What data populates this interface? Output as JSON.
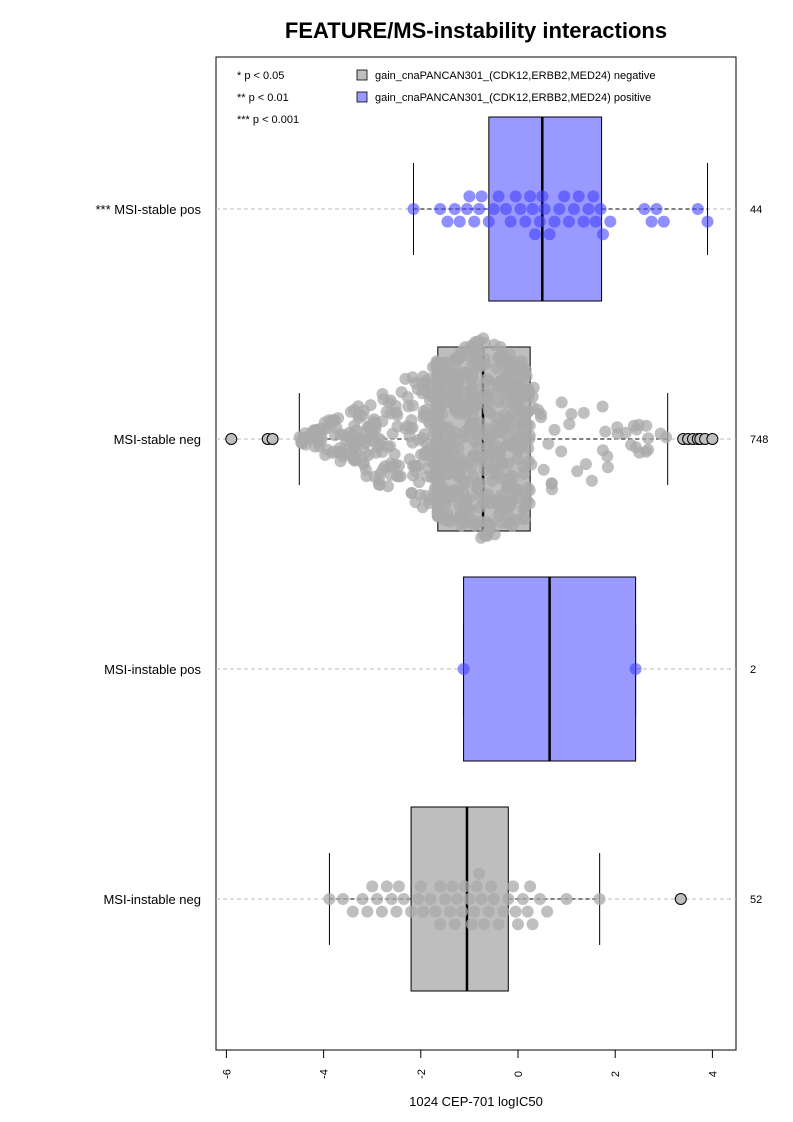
{
  "chart_data": {
    "type": "boxplot",
    "orientation": "horizontal",
    "title": "FEATURE/MS-instability interactions",
    "xlabel": "1024 CEP-701 logIC50",
    "xlim": [
      -6.3,
      4.5
    ],
    "x_ticks": [
      -6,
      -4,
      -2,
      0,
      2,
      4
    ],
    "x_tick_labels": [
      "-6",
      "-4",
      "-2",
      "0",
      "2",
      "4"
    ],
    "significance_legend": [
      "* p < 0.05",
      "** p < 0.01",
      "*** p < 0.001"
    ],
    "legend": [
      {
        "label": "gain_cnaPANCAN301_(CDK12,ERBB2,MED24) negative",
        "color": "#bebebe"
      },
      {
        "label": "gain_cnaPANCAN301_(CDK12,ERBB2,MED24) positive",
        "color": "#9999ff"
      }
    ],
    "colors": {
      "negative_box": "#bebebe",
      "positive_box": "#9999ff",
      "negative_point": "#aaaaaa",
      "positive_point": "#4444ff",
      "grid": "#bbbbbb"
    },
    "groups": [
      {
        "label": "*** MSI-stable pos",
        "n_label": "44",
        "kind": "pos",
        "whisker_low": -2.15,
        "q1": -0.6,
        "median": 0.5,
        "q3": 1.72,
        "whisker_high": 3.9,
        "outliers": [],
        "points": [
          -2.15,
          -1.6,
          -1.45,
          -1.3,
          -1.2,
          -1.05,
          -0.9,
          -0.8,
          -0.75,
          -0.6,
          -0.5,
          -0.4,
          -0.25,
          -0.15,
          -0.05,
          0.05,
          0.15,
          0.25,
          0.35,
          0.45,
          0.5,
          0.55,
          0.65,
          0.75,
          0.85,
          0.95,
          1.05,
          1.15,
          1.25,
          1.35,
          1.45,
          1.6,
          1.7,
          1.75,
          1.9,
          2.6,
          2.75,
          2.85,
          3.0,
          3.7,
          3.9,
          -1.0,
          0.3,
          1.55
        ]
      },
      {
        "label": "MSI-stable neg",
        "n_label": "748",
        "kind": "neg",
        "whisker_low": -4.5,
        "q1": -1.65,
        "median": -0.72,
        "q3": 0.25,
        "whisker_high": 3.08,
        "outliers": [
          -5.9,
          -5.15,
          -5.05,
          3.4,
          3.5,
          3.6,
          3.7,
          3.75,
          3.85,
          4.0
        ],
        "count_points": 748
      },
      {
        "label": "MSI-instable pos",
        "n_label": "2",
        "kind": "pos",
        "whisker_low": -1.12,
        "q1": -1.12,
        "median": 0.65,
        "q3": 2.42,
        "whisker_high": 2.42,
        "outliers": [],
        "points": [
          -1.12,
          2.42
        ]
      },
      {
        "label": "MSI-instable neg",
        "n_label": "52",
        "kind": "neg",
        "whisker_low": -3.88,
        "q1": -2.2,
        "median": -1.05,
        "q3": -0.2,
        "whisker_high": 1.68,
        "outliers": [
          3.35
        ],
        "points": [
          -3.88,
          -3.6,
          -3.2,
          -3.1,
          -3.0,
          -2.9,
          -2.8,
          -2.7,
          -2.6,
          -2.45,
          -2.35,
          -2.2,
          -2.05,
          -1.95,
          -1.8,
          -1.7,
          -1.6,
          -1.5,
          -1.4,
          -1.3,
          -1.25,
          -1.15,
          -1.1,
          -1.0,
          -0.95,
          -0.9,
          -0.85,
          -0.8,
          -0.7,
          -0.6,
          -0.5,
          -0.4,
          -0.3,
          -0.2,
          -0.1,
          0.0,
          0.1,
          0.2,
          0.3,
          0.45,
          0.6,
          1.0,
          1.68,
          -2.5,
          -1.6,
          -0.75,
          -0.05,
          -3.4,
          -2.0,
          -1.35,
          -0.55,
          0.25
        ]
      }
    ]
  }
}
